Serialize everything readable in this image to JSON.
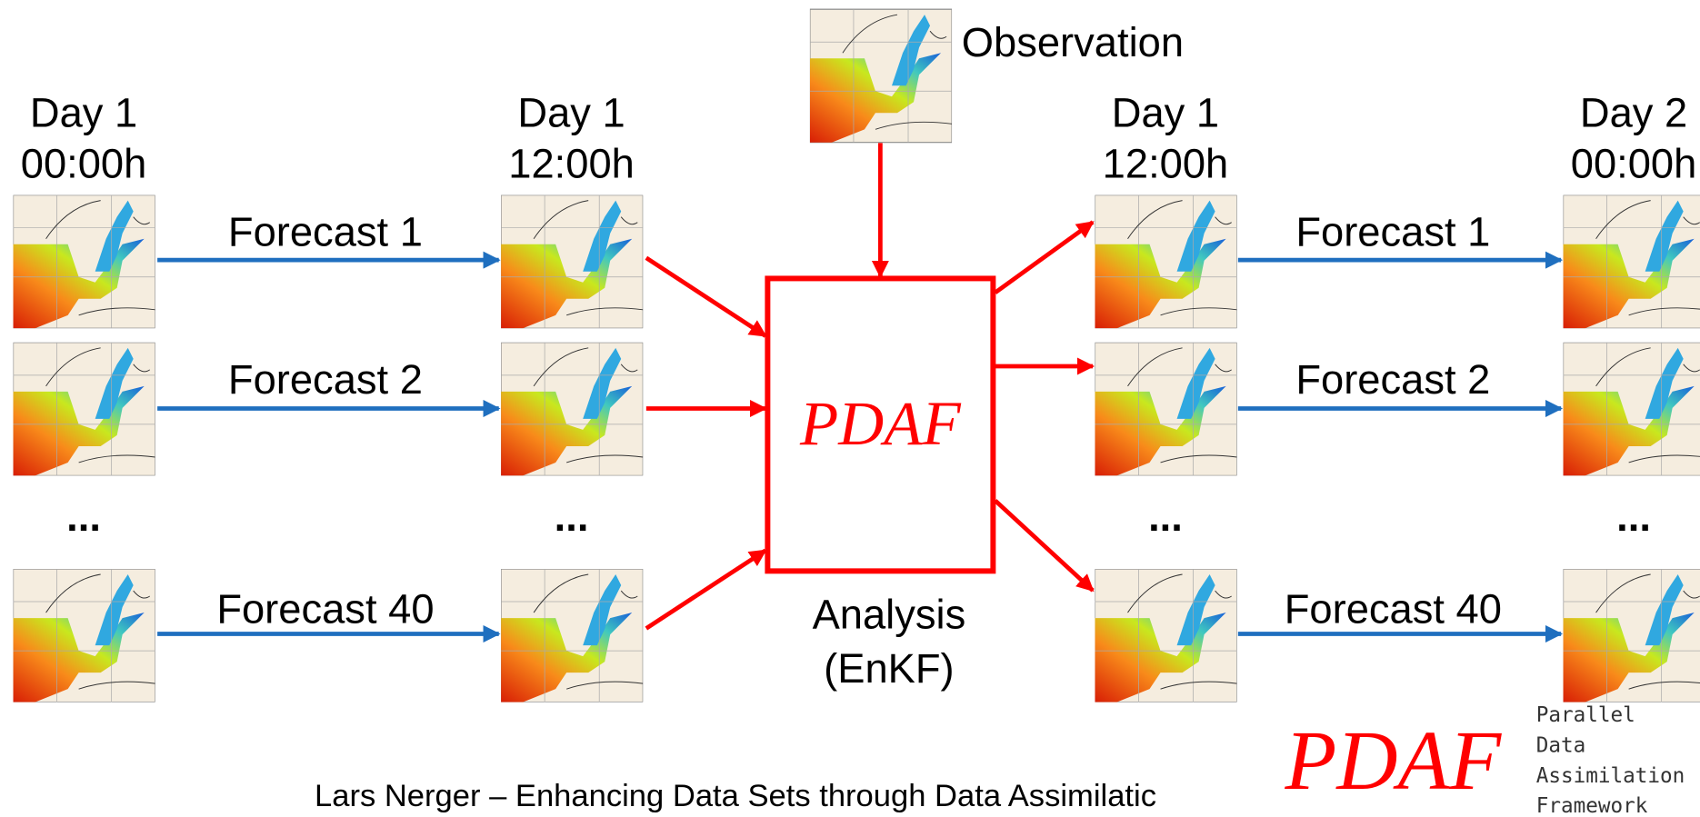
{
  "observation": {
    "label": "Observation"
  },
  "columns": [
    {
      "day": "Day 1",
      "time": "00:00h",
      "ellipsis": "..."
    },
    {
      "day": "Day 1",
      "time": "12:00h",
      "ellipsis": "..."
    },
    {
      "day": "Day 1",
      "time": "12:00h",
      "ellipsis": "..."
    },
    {
      "day": "Day 2",
      "time": "00:00h",
      "ellipsis": "..."
    }
  ],
  "forecasts_left": [
    "Forecast 1",
    "Forecast 2",
    "Forecast 40"
  ],
  "forecasts_right": [
    "Forecast 1",
    "Forecast 2",
    "Forecast 40"
  ],
  "analysis": {
    "box_label": "PDAF",
    "label_line1": "Analysis",
    "label_line2": "(EnKF)"
  },
  "footer": "Lars Nerger – Enhancing Data Sets through Data Assimilatic",
  "logo": {
    "mark": "PDAF",
    "lines": [
      "Parallel",
      "Data",
      "Assimilation",
      "Framework"
    ]
  }
}
